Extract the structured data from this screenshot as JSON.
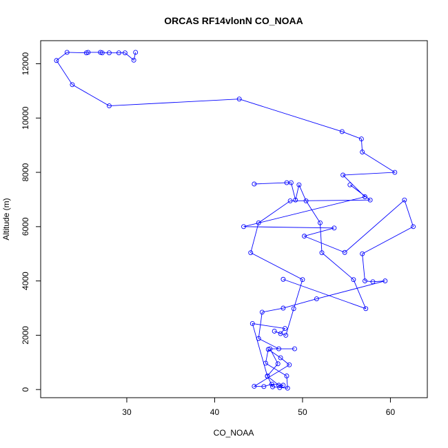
{
  "chart_data": {
    "type": "line",
    "title": "ORCAS RF14vlonN CO_NOAA",
    "xlabel": "CO_NOAA",
    "ylabel": "Altitude (m)",
    "xlim": [
      20.2,
      64.2
    ],
    "ylim": [
      -300,
      12850
    ],
    "xticks": [
      30,
      40,
      50,
      60
    ],
    "yticks": [
      0,
      2000,
      4000,
      6000,
      8000,
      10000,
      12000
    ],
    "grid": false,
    "legend": "none",
    "markers": "open-circle",
    "series_color": "#0000ff",
    "series": [
      {
        "x": [
          31.0,
          30.8,
          29.8,
          29.1,
          28.0,
          27.2,
          27.0,
          25.6,
          25.4,
          23.2,
          22.0,
          23.8,
          28.0,
          42.8,
          54.5,
          56.7,
          56.8,
          60.5,
          54.6,
          57.1,
          43.3,
          53.6,
          50.2,
          54.8,
          61.6,
          62.6,
          56.8,
          57.1,
          58.0,
          59.4,
          51.6,
          47.8,
          45.4,
          45.0,
          47.3,
          49.1,
          46.3,
          47.2,
          46.0,
          46.6,
          48.3,
          48.2,
          45.8,
          46.1,
          47.5,
          48.5,
          44.5,
          45.6,
          46.5,
          47.8,
          47.4,
          47.3,
          46.0,
          44.3,
          48.0,
          47.5,
          46.8,
          48.1,
          49.0,
          50.0,
          44.1,
          45.0,
          48.6,
          57.7,
          55.4
        ],
        "y": [
          12420,
          12130,
          12400,
          12400,
          12400,
          12400,
          12420,
          12420,
          12400,
          12420,
          12120,
          11230,
          10450,
          10700,
          9500,
          9230,
          8750,
          8000,
          7900,
          7100,
          6000,
          5950,
          5650,
          5050,
          6980,
          6000,
          5000,
          4000,
          3970,
          4000,
          3340,
          3000,
          2850,
          1880,
          1500,
          1500,
          1500,
          950,
          500,
          100,
          50,
          500,
          970,
          1480,
          1170,
          910,
          120,
          110,
          200,
          160,
          70,
          160,
          490,
          2430,
          2250,
          2060,
          2150,
          2000,
          2980,
          4050,
          5040,
          6140,
          6950,
          6980,
          7540
        ]
      },
      {
        "x": [
          44.5,
          48.2,
          48.7,
          49.2,
          49.6,
          50.4,
          52.0,
          52.2,
          55.8,
          57.2,
          47.8
        ],
        "y": [
          7570,
          7620,
          7620,
          6980,
          7540,
          6950,
          6140,
          5040,
          4050,
          2980,
          4060
        ]
      }
    ]
  }
}
